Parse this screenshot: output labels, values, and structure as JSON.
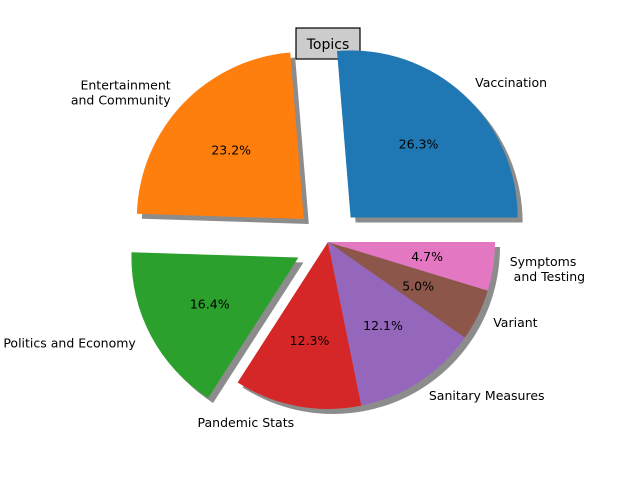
{
  "chart_data": {
    "type": "pie",
    "title": "Topics",
    "slices": [
      {
        "label": "Vaccination",
        "value": 26.3,
        "pct_label": "26.3%",
        "color": "#1f77b4",
        "exploded": true
      },
      {
        "label": "Entertainment\nand Community",
        "value": 23.2,
        "pct_label": "23.2%",
        "color": "#ff7f0e",
        "exploded": true
      },
      {
        "label": "Politics and Economy",
        "value": 16.4,
        "pct_label": "16.4%",
        "color": "#2ca02c",
        "exploded": true
      },
      {
        "label": "Pandemic Stats",
        "value": 12.3,
        "pct_label": "12.3%",
        "color": "#d62728",
        "exploded": false
      },
      {
        "label": "Sanitary Measures",
        "value": 12.1,
        "pct_label": "12.1%",
        "color": "#9467bd",
        "exploded": false
      },
      {
        "label": "Variant",
        "value": 5.0,
        "pct_label": "5.0%",
        "color": "#8c564b",
        "exploded": false
      },
      {
        "label": "Symptoms\n and Testing",
        "value": 4.7,
        "pct_label": "4.7%",
        "color": "#e377c2",
        "exploded": false
      }
    ],
    "shadow": true,
    "start_angle": 0,
    "direction": "counterclockwise"
  }
}
